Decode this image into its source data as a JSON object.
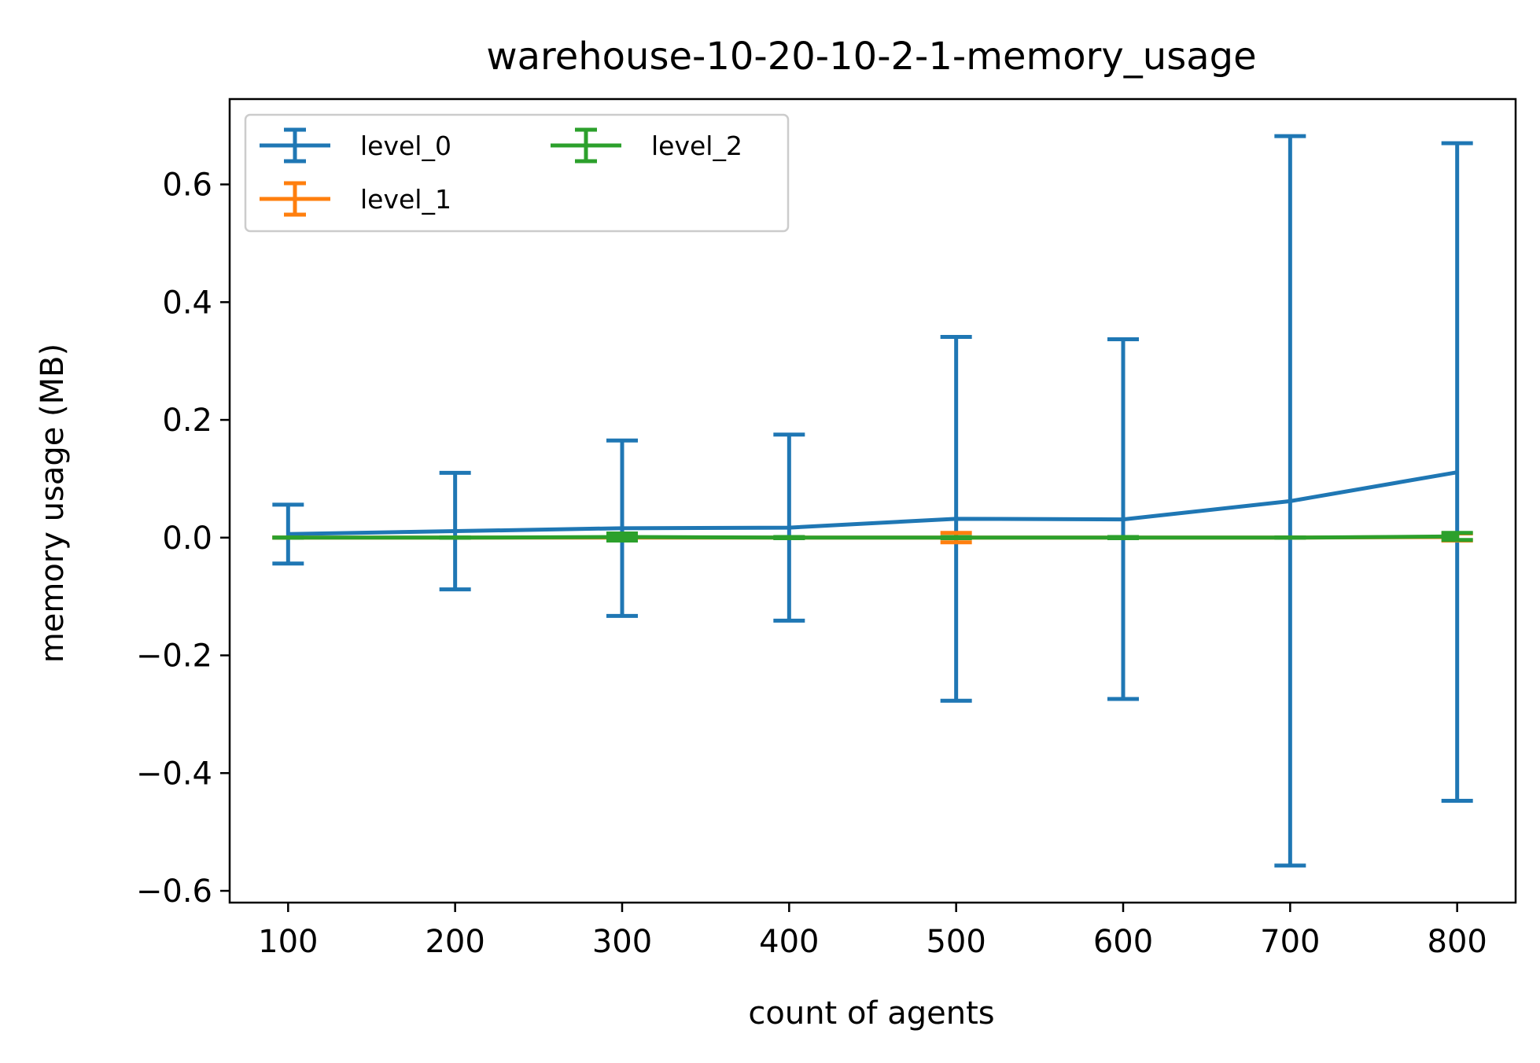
{
  "chart_data": {
    "type": "line",
    "title": "warehouse-10-20-10-2-1-memory_usage",
    "xlabel": "count of agents",
    "ylabel": "memory usage (MB)",
    "x": [
      100,
      200,
      300,
      400,
      500,
      600,
      700,
      800
    ],
    "xlim": [
      65,
      835
    ],
    "ylim": [
      -0.62,
      0.745
    ],
    "xticks": [
      100,
      200,
      300,
      400,
      500,
      600,
      700,
      800
    ],
    "yticks": [
      -0.6,
      -0.4,
      -0.2,
      0.0,
      0.2,
      0.4,
      0.6
    ],
    "ytick_labels": [
      "−0.6",
      "−0.4",
      "−0.2",
      "0.0",
      "0.2",
      "0.4",
      "0.6"
    ],
    "xtick_labels": [
      "100",
      "200",
      "300",
      "400",
      "500",
      "600",
      "700",
      "800"
    ],
    "grid": false,
    "legend": {
      "placement": "top-left",
      "columns": 2
    },
    "series": [
      {
        "name": "level_0",
        "color": "#1f77b4",
        "values": [
          0.006,
          0.011,
          0.016,
          0.017,
          0.032,
          0.031,
          0.062,
          0.111
        ],
        "err_low": [
          -0.044,
          -0.088,
          -0.133,
          -0.141,
          -0.277,
          -0.274,
          -0.557,
          -0.447
        ],
        "err_high": [
          0.056,
          0.11,
          0.165,
          0.175,
          0.341,
          0.337,
          0.682,
          0.67
        ]
      },
      {
        "name": "level_1",
        "color": "#ff7f0e",
        "values": [
          0.0,
          0.0,
          0.0,
          0.0,
          0.0,
          0.0,
          0.0,
          0.001
        ],
        "err_low": [
          0.0,
          0.0,
          -0.003,
          -0.001,
          -0.008,
          -0.001,
          0.0,
          -0.005
        ],
        "err_high": [
          0.0,
          0.0,
          0.003,
          0.001,
          0.008,
          0.001,
          0.0,
          0.007
        ]
      },
      {
        "name": "level_2",
        "color": "#2ca02c",
        "values": [
          0.0,
          0.0,
          0.001,
          0.0,
          0.0,
          0.0,
          0.0,
          0.002
        ],
        "err_low": [
          0.0,
          0.0,
          -0.005,
          -0.001,
          -0.001,
          -0.001,
          0.0,
          -0.004
        ],
        "err_high": [
          0.0,
          0.0,
          0.007,
          0.001,
          0.001,
          0.001,
          0.0,
          0.008
        ]
      }
    ]
  }
}
